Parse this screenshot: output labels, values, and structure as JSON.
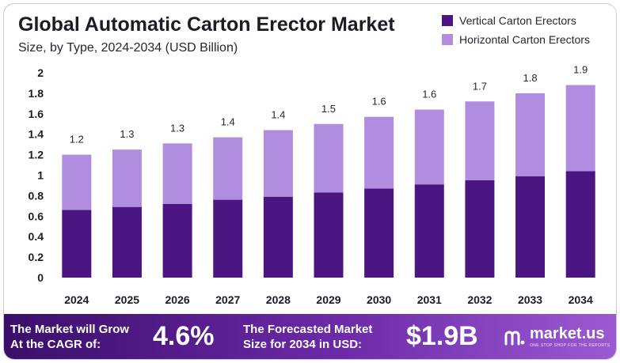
{
  "header": {
    "title": "Global Automatic Carton Erector Market",
    "subtitle": "Size, by Type, 2024-2034 (USD Billion)"
  },
  "colors": {
    "vertical": "#4b1582",
    "horizontal": "#b08ddf",
    "text": "#1f1a24"
  },
  "chart_data": {
    "type": "bar",
    "stacked": true,
    "categories": [
      "2024",
      "2025",
      "2026",
      "2027",
      "2028",
      "2029",
      "2030",
      "2031",
      "2032",
      "2033",
      "2034"
    ],
    "series": [
      {
        "name": "Vertical Carton Erectors",
        "values": [
          0.66,
          0.69,
          0.72,
          0.76,
          0.79,
          0.83,
          0.87,
          0.91,
          0.95,
          0.99,
          1.04
        ]
      },
      {
        "name": "Horizontal Carton Erectors",
        "values": [
          0.54,
          0.56,
          0.59,
          0.61,
          0.65,
          0.67,
          0.7,
          0.73,
          0.77,
          0.81,
          0.84
        ]
      }
    ],
    "total_labels": [
      "1.2",
      "1.3",
      "1.3",
      "1.4",
      "1.4",
      "1.5",
      "1.6",
      "1.6",
      "1.7",
      "1.8",
      "1.9"
    ],
    "ylim": [
      0,
      2
    ],
    "yticks": [
      "0",
      "0.2",
      "0.4",
      "0.6",
      "0.8",
      "1",
      "1.2",
      "1.4",
      "1.6",
      "1.8",
      "2"
    ],
    "grid": false,
    "legend_position": "top-right"
  },
  "footer": {
    "cagr_label_line1": "The Market will Grow",
    "cagr_label_line2": "At the CAGR of:",
    "cagr_value": "4.6%",
    "forecast_label_line1": "The Forecasted Market",
    "forecast_label_line2": "Size for 2034 in USD:",
    "forecast_value": "$1.9B",
    "brand_name": "market.us",
    "brand_tagline": "ONE STOP SHOP FOR THE REPORTS"
  }
}
